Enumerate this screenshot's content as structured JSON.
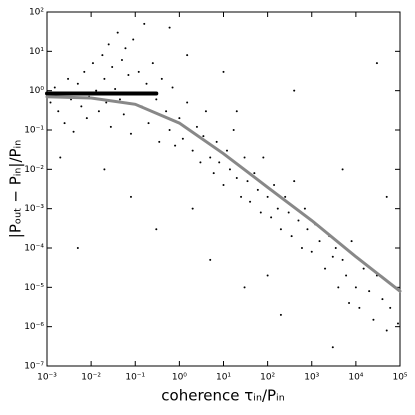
{
  "chart_data": {
    "type": "scatter",
    "x_label": "coherence τᵢₙ/Pᵢₙ",
    "y_label": "|Pₒᵤₜ − Pᵢₙ|/Pᵢₙ",
    "log_x": true,
    "log_y": true,
    "xlim": [
      0.001,
      100000
    ],
    "ylim": [
      1e-07,
      100
    ],
    "xticks": [
      {
        "value": 0.001,
        "label": "10⁻³"
      },
      {
        "value": 0.01,
        "label": "10⁻²"
      },
      {
        "value": 0.1,
        "label": "10⁻¹"
      },
      {
        "value": 1,
        "label": "10⁰"
      },
      {
        "value": 10,
        "label": "10¹"
      },
      {
        "value": 100,
        "label": "10²"
      },
      {
        "value": 1000,
        "label": "10³"
      },
      {
        "value": 10000,
        "label": "10⁴"
      },
      {
        "value": 100000,
        "label": "10⁵"
      }
    ],
    "yticks": [
      {
        "value": 1e-07,
        "label": "10⁻⁷"
      },
      {
        "value": 1e-06,
        "label": "10⁻⁶"
      },
      {
        "value": 1e-05,
        "label": "10⁻⁵"
      },
      {
        "value": 0.0001,
        "label": "10⁻⁴"
      },
      {
        "value": 0.001,
        "label": "10⁻³"
      },
      {
        "value": 0.01,
        "label": "10⁻²"
      },
      {
        "value": 0.1,
        "label": "10⁻¹"
      },
      {
        "value": 1,
        "label": "10⁰"
      },
      {
        "value": 10,
        "label": "10¹"
      },
      {
        "value": 100,
        "label": "10²"
      }
    ],
    "points": {
      "color": "#000000",
      "x": [
        0.0012,
        0.0015,
        0.0018,
        0.002,
        0.0025,
        0.003,
        0.0035,
        0.004,
        0.005,
        0.006,
        0.007,
        0.008,
        0.009,
        0.011,
        0.013,
        0.015,
        0.018,
        0.02,
        0.022,
        0.025,
        0.028,
        0.03,
        0.035,
        0.04,
        0.045,
        0.05,
        0.055,
        0.06,
        0.07,
        0.08,
        0.09,
        0.1,
        0.12,
        0.14,
        0.16,
        0.18,
        0.2,
        0.25,
        0.3,
        0.35,
        0.4,
        0.5,
        0.6,
        0.7,
        0.8,
        1,
        1.2,
        1.5,
        2,
        2.5,
        3,
        3.5,
        4,
        5,
        6,
        7,
        8,
        10,
        12,
        14,
        17,
        20,
        25,
        30,
        35,
        40,
        50,
        60,
        70,
        80,
        100,
        120,
        140,
        170,
        200,
        250,
        300,
        350,
        400,
        500,
        600,
        700,
        800,
        1000,
        1200,
        1500,
        2000,
        2500,
        3000,
        3500,
        4000,
        5000,
        6000,
        7000,
        8000,
        10000,
        12000,
        15000,
        20000,
        25000,
        30000,
        40000,
        50000,
        60000,
        80000,
        90000,
        0.005,
        0.08,
        0.3,
        5,
        30,
        200,
        3000,
        30000,
        400,
        10,
        2,
        0.02,
        100,
        5000,
        0.6,
        1.5,
        20,
        0.002,
        50000
      ],
      "y": [
        0.5,
        1.2,
        0.3,
        0.8,
        0.15,
        2,
        0.6,
        0.09,
        1.5,
        0.4,
        3,
        0.2,
        0.7,
        5,
        1,
        0.3,
        8,
        2,
        0.5,
        15,
        0.12,
        4,
        1.1,
        30,
        0.6,
        6,
        0.25,
        12,
        2.5,
        0.08,
        20,
        0.9,
        3,
        0.4,
        50,
        1.5,
        0.15,
        5,
        0.6,
        0.05,
        2,
        0.3,
        0.1,
        1.2,
        0.04,
        0.2,
        0.06,
        0.5,
        0.03,
        0.12,
        0.015,
        0.07,
        0.3,
        0.02,
        0.008,
        0.05,
        0.015,
        0.004,
        0.03,
        0.01,
        0.1,
        0.006,
        0.002,
        0.02,
        0.005,
        0.0015,
        0.008,
        0.003,
        0.0008,
        0.02,
        0.002,
        0.0006,
        0.004,
        0.001,
        0.0003,
        0.002,
        0.0008,
        0.0002,
        0.005,
        0.0005,
        0.0001,
        0.001,
        0.0003,
        8e-05,
        0.0004,
        0.00015,
        3e-05,
        0.0002,
        6e-05,
        0.0001,
        1e-05,
        5e-05,
        2e-05,
        4e-06,
        0.00015,
        1e-05,
        3e-06,
        3e-05,
        8e-06,
        1.5e-06,
        2e-05,
        5e-06,
        8e-07,
        3e-06,
        1e-05,
        1.2e-06,
        0.0001,
        0.002,
        0.0003,
        5e-05,
        1e-05,
        2e-06,
        3e-07,
        5,
        1,
        3,
        0.001,
        0.01,
        2e-05,
        0.01,
        40,
        8,
        0.3,
        0.02,
        0.002
      ]
    },
    "lines": [
      {
        "color": "#000000",
        "x": [
          0.001,
          0.3
        ],
        "values": [
          0.85,
          0.85
        ]
      },
      {
        "color": "#888888",
        "x": [
          0.001,
          0.01,
          0.1,
          1,
          10,
          100,
          1000,
          10000,
          100000
        ],
        "values": [
          0.7,
          0.65,
          0.45,
          0.15,
          0.025,
          0.0035,
          0.0005,
          6e-05,
          8e-06
        ]
      }
    ]
  }
}
